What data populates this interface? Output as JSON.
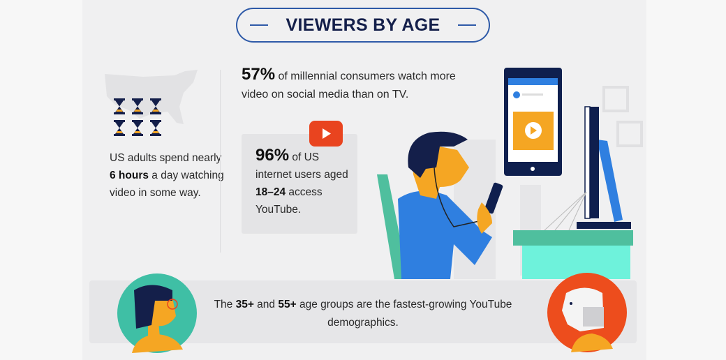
{
  "title": "VIEWERS BY AGE",
  "left_stat": {
    "pre": "US adults spend nearly ",
    "bold": "6 hours",
    "post": " a day watching video in some way.",
    "icon": "hourglass-icon",
    "icon_count": 6
  },
  "stat_millennial": {
    "bold": "57%",
    "text": " of millennial consumers watch more video on social media than on TV."
  },
  "stat_youtube": {
    "bold": "96%",
    "text1": " of US internet users aged ",
    "bold2": "18–24",
    "text2": " access YouTube.",
    "icon": "youtube-play-icon"
  },
  "bottom": {
    "pre": "The ",
    "bold1": "35+",
    "mid": " and ",
    "bold2": "55+",
    "post": " age groups are the fastest-growing YouTube demographics."
  },
  "colors": {
    "navy": "#141f4a",
    "accent_blue": "#2e5aa8",
    "youtube_red": "#e9441f",
    "teal": "#3fbfa5",
    "orange": "#f5a623",
    "avatar_red": "#ed4d1d"
  }
}
